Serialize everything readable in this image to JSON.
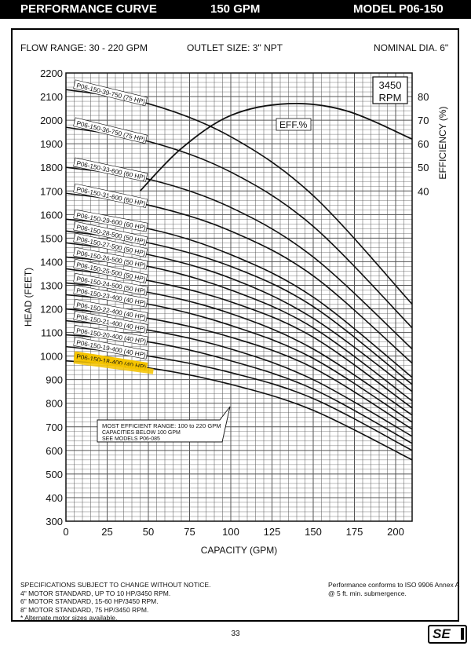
{
  "header": {
    "title": "PERFORMANCE CURVE",
    "gpm": "150 GPM",
    "model": "MODEL  P06-150"
  },
  "specs": {
    "flow_range": "FLOW RANGE: 30 - 220 GPM",
    "outlet": "OUTLET SIZE: 3\" NPT",
    "nominal": "NOMINAL DIA. 6\""
  },
  "rpm_box": {
    "line1": "3450",
    "line2": "RPM"
  },
  "eff_label": "EFF.%",
  "note": {
    "line1": "MOST EFFICIENT RANGE: 100 to 220 GPM",
    "line2": "CAPACITIES BELOW 100 GPM",
    "line3": "SEE MODELS  P06-085"
  },
  "footer": {
    "left": [
      "SPECIFICATIONS SUBJECT TO CHANGE WITHOUT NOTICE.",
      "4\" MOTOR STANDARD, UP TO 10 HP/3450 RPM.",
      "6\" MOTOR STANDARD, 15-60 HP/3450 RPM.",
      "8\" MOTOR STANDARD, 75 HP/3450 RPM.",
      "* Alternate motor sizes available."
    ],
    "right": [
      "Performance conforms to ISO 9906 Annex A",
      "@ 5 ft. min. submergence."
    ],
    "page": "33",
    "logo": "SE"
  },
  "colors": {
    "highlight": "#f5c400",
    "ink": "#111111",
    "grid": "#555555"
  },
  "chart_data": {
    "type": "line",
    "xlabel": "CAPACITY (GPM)",
    "ylabel": "HEAD (FEET)",
    "y2label": "EFFICIENCY (%)",
    "xlim": [
      0,
      210
    ],
    "ylim": [
      300,
      2200
    ],
    "y2lim": [
      40,
      80
    ],
    "xticks": [
      "0",
      "25",
      "50",
      "75",
      "100",
      "125",
      "150",
      "175",
      "200"
    ],
    "yticks": [
      "300",
      "400",
      "500",
      "600",
      "700",
      "800",
      "900",
      "1000",
      "1100",
      "1200",
      "1300",
      "1400",
      "1500",
      "1600",
      "1700",
      "1800",
      "1900",
      "2000",
      "2100",
      "2200"
    ],
    "y2ticks": [
      "40",
      "50",
      "60",
      "70",
      "80"
    ],
    "grid": true,
    "highlighted_model": "P06-150-18-400 (40 HP)",
    "series": [
      {
        "name": "P06-150-39-750 (75 HP)",
        "x": [
          0,
          50,
          100,
          150,
          210
        ],
        "y": [
          2130,
          2070,
          1930,
          1680,
          1220
        ]
      },
      {
        "name": "P06-150-36-750 (75 HP)",
        "x": [
          0,
          50,
          100,
          150,
          210
        ],
        "y": [
          1970,
          1910,
          1780,
          1550,
          1120
        ]
      },
      {
        "name": "P06-150-33-600 (60 HP)",
        "x": [
          0,
          50,
          100,
          150,
          210
        ],
        "y": [
          1800,
          1750,
          1630,
          1420,
          1030
        ]
      },
      {
        "name": "P06-150-31-600 (60 HP)",
        "x": [
          0,
          50,
          100,
          150,
          210
        ],
        "y": [
          1690,
          1640,
          1530,
          1340,
          970
        ]
      },
      {
        "name": "P06-150-29-600 (60 HP)",
        "x": [
          0,
          50,
          100,
          150,
          210
        ],
        "y": [
          1580,
          1540,
          1430,
          1250,
          910
        ]
      },
      {
        "name": "P06-150-28-500 (50 HP)",
        "x": [
          0,
          50,
          100,
          150,
          210
        ],
        "y": [
          1530,
          1480,
          1380,
          1210,
          880
        ]
      },
      {
        "name": "P06-150-27-500 (50 HP)",
        "x": [
          0,
          50,
          100,
          150,
          210
        ],
        "y": [
          1480,
          1430,
          1330,
          1160,
          850
        ]
      },
      {
        "name": "P06-150-26-500 (50 HP)",
        "x": [
          0,
          50,
          100,
          150,
          210
        ],
        "y": [
          1420,
          1380,
          1280,
          1120,
          810
        ]
      },
      {
        "name": "P06-150-25-500 (50 HP)",
        "x": [
          0,
          50,
          100,
          150,
          210
        ],
        "y": [
          1370,
          1320,
          1230,
          1080,
          780
        ]
      },
      {
        "name": "P06-150-24-500 (50 HP)",
        "x": [
          0,
          50,
          100,
          150,
          210
        ],
        "y": [
          1310,
          1270,
          1180,
          1030,
          750
        ]
      },
      {
        "name": "P06-150-23-400 (40 HP)",
        "x": [
          0,
          50,
          100,
          150,
          210
        ],
        "y": [
          1260,
          1220,
          1130,
          990,
          720
        ]
      },
      {
        "name": "P06-150-22-400 (40 HP)",
        "x": [
          0,
          50,
          100,
          150,
          210
        ],
        "y": [
          1200,
          1160,
          1080,
          950,
          690
        ]
      },
      {
        "name": "P06-150-21-400 (40 HP)",
        "x": [
          0,
          50,
          100,
          150,
          210
        ],
        "y": [
          1150,
          1110,
          1030,
          900,
          660
        ]
      },
      {
        "name": "P06-150-20-400 (40 HP)",
        "x": [
          0,
          50,
          100,
          150,
          210
        ],
        "y": [
          1090,
          1060,
          980,
          860,
          630
        ]
      },
      {
        "name": "P06-150-19-400 (40 HP)",
        "x": [
          0,
          50,
          100,
          150,
          210
        ],
        "y": [
          1040,
          1000,
          930,
          820,
          600
        ]
      },
      {
        "name": "P06-150-18-400 (40 HP)",
        "x": [
          0,
          50,
          100,
          150,
          210
        ],
        "y": [
          980,
          950,
          880,
          770,
          560
        ]
      }
    ],
    "efficiency": {
      "name": "EFF.%",
      "x": [
        45,
        70,
        100,
        135,
        170,
        210
      ],
      "y": [
        40,
        58,
        72,
        77,
        74,
        62
      ]
    }
  }
}
